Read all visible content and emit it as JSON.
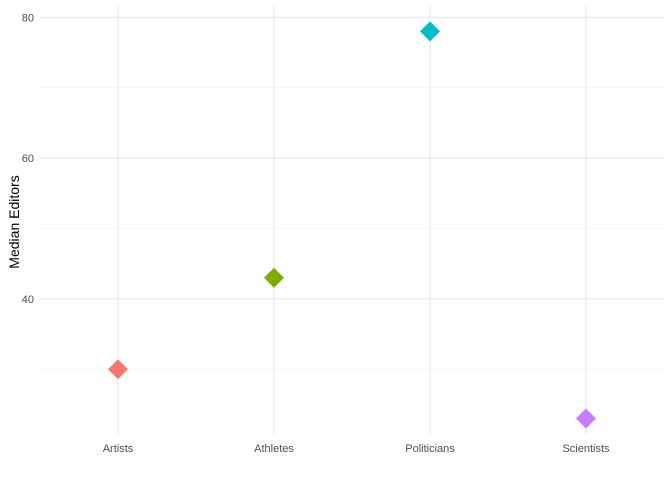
{
  "chart_data": {
    "type": "scatter",
    "marker": "diamond",
    "title": "",
    "xlabel": "",
    "ylabel": "Median Editors",
    "categories": [
      "Artists",
      "Athletes",
      "Politicians",
      "Scientists"
    ],
    "values": [
      30,
      43,
      78,
      23
    ],
    "colors": [
      "#F8766D",
      "#7CAE00",
      "#00BFC4",
      "#C77CFF"
    ],
    "ylim": [
      20.8,
      81.6
    ],
    "y_ticks": [
      40,
      60,
      80
    ],
    "y_minor_ticks": [
      30,
      50,
      70
    ],
    "grid": true,
    "legend": "none"
  }
}
